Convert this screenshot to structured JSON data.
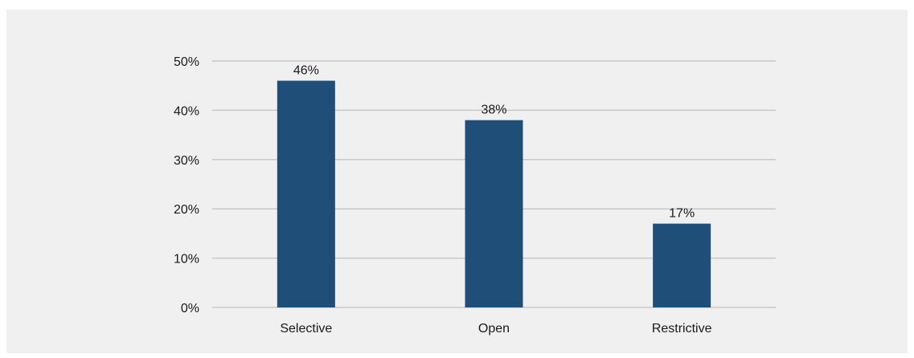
{
  "chart_data": {
    "type": "bar",
    "categories": [
      "Selective",
      "Open",
      "Restrictive"
    ],
    "values": [
      46,
      38,
      17
    ],
    "data_labels": [
      "46%",
      "38%",
      "17%"
    ],
    "ylim": [
      0,
      50
    ],
    "yticks": [
      0,
      10,
      20,
      30,
      40,
      50
    ],
    "ytick_labels": [
      "0%",
      "10%",
      "20%",
      "30%",
      "40%",
      "50%"
    ],
    "title": "",
    "xlabel": "",
    "ylabel": "",
    "grid": true,
    "legend": "none",
    "colors": {
      "bar": "#1f4e79",
      "grid": "#c8c8c8",
      "background": "#f0f0f0"
    }
  }
}
